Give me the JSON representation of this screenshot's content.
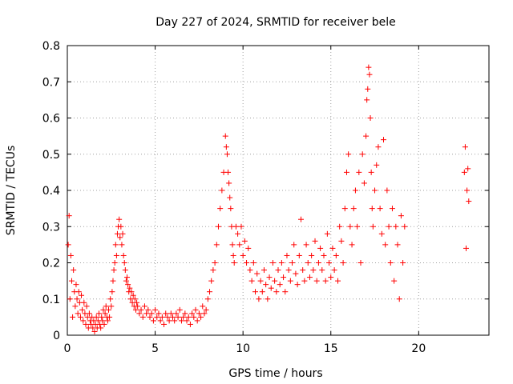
{
  "chart_data": {
    "type": "scatter",
    "title": "Day 227 of 2024, SRMTID for receiver bele",
    "xlabel": "GPS time / hours",
    "ylabel": "SRMTID / TECUs",
    "xlim": [
      0,
      24
    ],
    "ylim": [
      0,
      0.8
    ],
    "xticks": [
      0,
      5,
      10,
      15,
      20
    ],
    "yticks": [
      0,
      0.1,
      0.2,
      0.3,
      0.4,
      0.5,
      0.6,
      0.7,
      0.8
    ],
    "grid": true,
    "marker": "plus",
    "color": "#ff0000",
    "series": [
      {
        "name": "SRMTID",
        "x": [
          0.05,
          0.1,
          0.15,
          0.2,
          0.25,
          0.3,
          0.35,
          0.4,
          0.45,
          0.5,
          0.55,
          0.6,
          0.65,
          0.7,
          0.75,
          0.8,
          0.85,
          0.9,
          0.95,
          1.0,
          1.05,
          1.1,
          1.15,
          1.2,
          1.25,
          1.3,
          1.35,
          1.4,
          1.45,
          1.5,
          1.55,
          1.6,
          1.65,
          1.7,
          1.75,
          1.8,
          1.85,
          1.9,
          1.95,
          2.0,
          2.05,
          2.1,
          2.15,
          2.2,
          2.25,
          2.3,
          2.35,
          2.4,
          2.45,
          2.5,
          2.55,
          2.6,
          2.65,
          2.7,
          2.75,
          2.8,
          2.85,
          2.9,
          2.95,
          3.0,
          3.05,
          3.1,
          3.15,
          3.2,
          3.25,
          3.3,
          3.35,
          3.4,
          3.45,
          3.5,
          3.55,
          3.6,
          3.65,
          3.7,
          3.75,
          3.8,
          3.85,
          3.9,
          3.95,
          4.0,
          4.1,
          4.2,
          4.3,
          4.4,
          4.5,
          4.6,
          4.7,
          4.8,
          4.9,
          5.0,
          5.1,
          5.2,
          5.3,
          5.4,
          5.5,
          5.6,
          5.7,
          5.8,
          5.9,
          6.0,
          6.1,
          6.2,
          6.3,
          6.4,
          6.5,
          6.6,
          6.7,
          6.8,
          6.9,
          7.0,
          7.1,
          7.2,
          7.3,
          7.4,
          7.5,
          7.6,
          7.7,
          7.8,
          7.9,
          8.0,
          8.1,
          8.2,
          8.3,
          8.4,
          8.5,
          8.6,
          8.7,
          8.8,
          8.9,
          9.0,
          9.05,
          9.1,
          9.15,
          9.2,
          9.25,
          9.3,
          9.35,
          9.4,
          9.45,
          9.5,
          9.6,
          9.7,
          9.8,
          9.9,
          10.0,
          10.1,
          10.2,
          10.3,
          10.4,
          10.5,
          10.6,
          10.7,
          10.8,
          10.9,
          11.0,
          11.1,
          11.2,
          11.3,
          11.4,
          11.5,
          11.6,
          11.7,
          11.8,
          11.9,
          12.0,
          12.1,
          12.2,
          12.3,
          12.4,
          12.5,
          12.6,
          12.7,
          12.8,
          12.9,
          13.0,
          13.1,
          13.2,
          13.3,
          13.4,
          13.5,
          13.6,
          13.7,
          13.8,
          13.9,
          14.0,
          14.1,
          14.2,
          14.3,
          14.4,
          14.5,
          14.6,
          14.7,
          14.8,
          14.9,
          15.0,
          15.1,
          15.2,
          15.3,
          15.4,
          15.5,
          15.6,
          15.7,
          15.8,
          15.9,
          16.0,
          16.1,
          16.2,
          16.3,
          16.4,
          16.5,
          16.6,
          16.7,
          16.8,
          16.9,
          17.0,
          17.05,
          17.1,
          17.15,
          17.2,
          17.25,
          17.3,
          17.35,
          17.4,
          17.5,
          17.6,
          17.7,
          17.8,
          17.9,
          18.0,
          18.1,
          18.2,
          18.3,
          18.4,
          18.5,
          18.6,
          18.7,
          18.8,
          18.9,
          19.0,
          19.1,
          19.2,
          22.6,
          22.65,
          22.7,
          22.75,
          22.8,
          22.85
        ],
        "y": [
          0.25,
          0.33,
          0.1,
          0.22,
          0.15,
          0.05,
          0.18,
          0.12,
          0.08,
          0.14,
          0.1,
          0.06,
          0.12,
          0.09,
          0.05,
          0.11,
          0.07,
          0.04,
          0.09,
          0.06,
          0.03,
          0.08,
          0.05,
          0.02,
          0.06,
          0.04,
          0.03,
          0.05,
          0.02,
          0.04,
          0.01,
          0.03,
          0.05,
          0.02,
          0.04,
          0.06,
          0.03,
          0.02,
          0.05,
          0.04,
          0.07,
          0.03,
          0.06,
          0.08,
          0.05,
          0.04,
          0.07,
          0.05,
          0.1,
          0.08,
          0.12,
          0.15,
          0.18,
          0.2,
          0.25,
          0.22,
          0.28,
          0.3,
          0.32,
          0.27,
          0.3,
          0.25,
          0.28,
          0.22,
          0.2,
          0.18,
          0.15,
          0.16,
          0.14,
          0.12,
          0.13,
          0.1,
          0.12,
          0.09,
          0.11,
          0.08,
          0.1,
          0.07,
          0.09,
          0.08,
          0.06,
          0.07,
          0.05,
          0.08,
          0.06,
          0.07,
          0.05,
          0.06,
          0.04,
          0.07,
          0.05,
          0.06,
          0.04,
          0.05,
          0.03,
          0.06,
          0.05,
          0.04,
          0.06,
          0.05,
          0.04,
          0.06,
          0.05,
          0.07,
          0.04,
          0.05,
          0.06,
          0.04,
          0.05,
          0.03,
          0.06,
          0.05,
          0.07,
          0.04,
          0.06,
          0.05,
          0.08,
          0.06,
          0.07,
          0.1,
          0.12,
          0.15,
          0.18,
          0.2,
          0.25,
          0.3,
          0.35,
          0.4,
          0.45,
          0.55,
          0.52,
          0.5,
          0.45,
          0.42,
          0.38,
          0.35,
          0.3,
          0.25,
          0.22,
          0.2,
          0.3,
          0.28,
          0.25,
          0.3,
          0.22,
          0.26,
          0.2,
          0.24,
          0.18,
          0.15,
          0.2,
          0.12,
          0.17,
          0.1,
          0.15,
          0.12,
          0.18,
          0.14,
          0.1,
          0.16,
          0.13,
          0.2,
          0.15,
          0.12,
          0.18,
          0.14,
          0.2,
          0.16,
          0.12,
          0.22,
          0.18,
          0.15,
          0.2,
          0.25,
          0.17,
          0.14,
          0.22,
          0.32,
          0.18,
          0.15,
          0.25,
          0.2,
          0.16,
          0.22,
          0.18,
          0.26,
          0.15,
          0.2,
          0.24,
          0.18,
          0.22,
          0.15,
          0.28,
          0.2,
          0.16,
          0.24,
          0.18,
          0.22,
          0.15,
          0.3,
          0.26,
          0.2,
          0.35,
          0.45,
          0.5,
          0.3,
          0.25,
          0.35,
          0.4,
          0.3,
          0.45,
          0.2,
          0.5,
          0.42,
          0.55,
          0.65,
          0.68,
          0.74,
          0.72,
          0.6,
          0.45,
          0.35,
          0.3,
          0.4,
          0.47,
          0.52,
          0.35,
          0.28,
          0.54,
          0.25,
          0.4,
          0.3,
          0.2,
          0.35,
          0.15,
          0.3,
          0.25,
          0.1,
          0.33,
          0.2,
          0.3,
          0.45,
          0.52,
          0.24,
          0.4,
          0.46,
          0.37
        ]
      }
    ]
  }
}
